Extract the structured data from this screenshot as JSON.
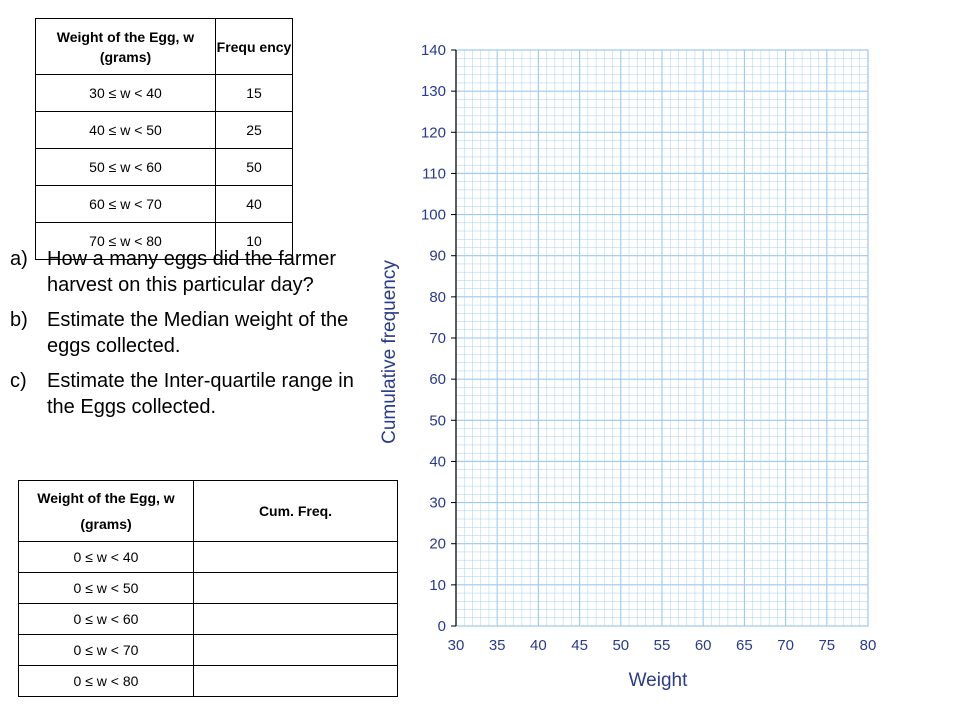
{
  "frequency_table": {
    "headers": [
      "Weight of the Egg, w (grams)",
      "Frequ ency"
    ],
    "rows": [
      [
        "30 ≤ w < 40",
        "15"
      ],
      [
        "40 ≤ w < 50",
        "25"
      ],
      [
        "50 ≤ w < 60",
        "50"
      ],
      [
        "60 ≤ w < 70",
        "40"
      ],
      [
        "70 ≤ w < 80",
        "10"
      ]
    ]
  },
  "questions": [
    {
      "label": "a)",
      "text": "How a many eggs did the farmer harvest on this particular day?"
    },
    {
      "label": "b)",
      "text": "Estimate the Median weight of the eggs collected."
    },
    {
      "label": "c)",
      "text": "Estimate the Inter-quartile range in the Eggs collected."
    }
  ],
  "cumulative_table": {
    "headers": [
      "Weight of the Egg, w (grams)",
      "Cum. Freq."
    ],
    "rows": [
      [
        "0 ≤ w < 40",
        ""
      ],
      [
        "0 ≤ w < 50",
        ""
      ],
      [
        "0 ≤ w < 60",
        ""
      ],
      [
        "0 ≤ w < 70",
        ""
      ],
      [
        "0 ≤ w < 80",
        ""
      ]
    ]
  },
  "graph": {
    "ylabel": "Cumulative frequency",
    "xlabel": "Weight",
    "y_ticks": [
      "0",
      "10",
      "20",
      "30",
      "40",
      "50",
      "60",
      "70",
      "80",
      "90",
      "100",
      "110",
      "120",
      "130",
      "140"
    ],
    "x_ticks": [
      "30",
      "35",
      "40",
      "45",
      "50",
      "55",
      "60",
      "65",
      "70",
      "75",
      "80"
    ],
    "grid_color": "#9ec9ee",
    "text_color": "#2a3a8c"
  },
  "chart_data": {
    "type": "line",
    "xlabel": "Weight",
    "ylabel": "Cumulative frequency",
    "xlim": [
      30,
      80
    ],
    "ylim": [
      0,
      140
    ],
    "grid": true,
    "series": []
  }
}
